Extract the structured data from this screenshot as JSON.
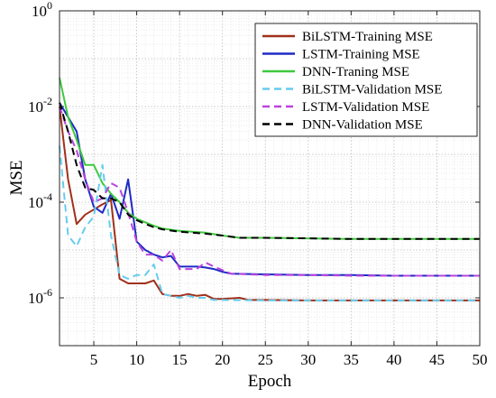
{
  "chart_data": {
    "type": "line",
    "title": "",
    "xlabel": "Epoch",
    "ylabel": "MSE",
    "xlim": [
      1,
      50
    ],
    "ylim": [
      1e-07,
      1
    ],
    "yscale": "log",
    "grid": true,
    "legend_position": "top-right",
    "x_ticks": [
      5,
      10,
      15,
      20,
      25,
      30,
      35,
      40,
      45,
      50
    ],
    "x_tick_labels": [
      "5",
      "10",
      "15",
      "20",
      "25",
      "30",
      "35",
      "40",
      "45",
      "50"
    ],
    "y_ticks": [
      1e-06,
      0.0001,
      0.01,
      1
    ],
    "y_tick_base": "10",
    "y_tick_exponents": [
      "-6",
      "-4",
      "-2",
      "0"
    ],
    "series": [
      {
        "name": "BiLSTM-Training MSE",
        "color": "#a0301a",
        "dash": "solid",
        "points": [
          [
            1,
            0.01
          ],
          [
            2,
            0.0003
          ],
          [
            3,
            3.5e-05
          ],
          [
            4,
            5.5e-05
          ],
          [
            5,
            7e-05
          ],
          [
            6,
            9e-05
          ],
          [
            7,
            0.00011
          ],
          [
            8,
            2.5e-06
          ],
          [
            9,
            2e-06
          ],
          [
            10,
            2e-06
          ],
          [
            11,
            2e-06
          ],
          [
            12,
            2.3e-06
          ],
          [
            13,
            1.2e-06
          ],
          [
            14,
            1.1e-06
          ],
          [
            15,
            1.1e-06
          ],
          [
            16,
            1.2e-06
          ],
          [
            17,
            1.1e-06
          ],
          [
            18,
            1.15e-06
          ],
          [
            19,
            9.5e-07
          ],
          [
            20,
            9.5e-07
          ],
          [
            22,
            1e-06
          ],
          [
            23,
            9e-07
          ],
          [
            25,
            9e-07
          ],
          [
            30,
            8.8e-07
          ],
          [
            35,
            8.8e-07
          ],
          [
            40,
            8.8e-07
          ],
          [
            45,
            8.8e-07
          ],
          [
            50,
            8.8e-07
          ]
        ]
      },
      {
        "name": "LSTM-Training MSE",
        "color": "#1f2bc4",
        "dash": "solid",
        "points": [
          [
            1,
            0.012
          ],
          [
            2,
            0.006
          ],
          [
            3,
            0.003
          ],
          [
            4,
            0.0003
          ],
          [
            5,
            8e-05
          ],
          [
            6,
            6e-05
          ],
          [
            7,
            0.00015
          ],
          [
            8,
            4.5e-05
          ],
          [
            9,
            0.0003
          ],
          [
            10,
            1.5e-05
          ],
          [
            11,
            1e-05
          ],
          [
            12,
            8e-06
          ],
          [
            13,
            7e-06
          ],
          [
            14,
            7.5e-06
          ],
          [
            15,
            4.5e-06
          ],
          [
            16,
            4.5e-06
          ],
          [
            17,
            4.5e-06
          ],
          [
            18,
            4.3e-06
          ],
          [
            19,
            4e-06
          ],
          [
            20,
            3.5e-06
          ],
          [
            21,
            3.2e-06
          ],
          [
            25,
            3.1e-06
          ],
          [
            30,
            3e-06
          ],
          [
            35,
            3e-06
          ],
          [
            40,
            2.9e-06
          ],
          [
            45,
            2.9e-06
          ],
          [
            50,
            2.9e-06
          ]
        ]
      },
      {
        "name": "DNN-Traning MSE",
        "color": "#3ec93e",
        "dash": "solid",
        "points": [
          [
            1,
            0.04
          ],
          [
            2,
            0.006
          ],
          [
            3,
            0.002
          ],
          [
            4,
            0.0006
          ],
          [
            5,
            0.0006
          ],
          [
            6,
            0.00025
          ],
          [
            7,
            0.00015
          ],
          [
            8,
            0.0001
          ],
          [
            9,
            6e-05
          ],
          [
            10,
            4.5e-05
          ],
          [
            11,
            3.8e-05
          ],
          [
            12,
            3.2e-05
          ],
          [
            13,
            2.8e-05
          ],
          [
            15,
            2.5e-05
          ],
          [
            18,
            2.3e-05
          ],
          [
            20,
            2e-05
          ],
          [
            22,
            1.8e-05
          ],
          [
            25,
            1.8e-05
          ],
          [
            30,
            1.75e-05
          ],
          [
            35,
            1.7e-05
          ],
          [
            40,
            1.7e-05
          ],
          [
            45,
            1.7e-05
          ],
          [
            50,
            1.7e-05
          ]
        ]
      },
      {
        "name": "BiLSTM-Validation MSE",
        "color": "#66ccee",
        "dash": "dashed",
        "points": [
          [
            1,
            0.0015
          ],
          [
            2,
            2e-05
          ],
          [
            3,
            1.2e-05
          ],
          [
            4,
            3e-05
          ],
          [
            5,
            5e-05
          ],
          [
            6,
            0.0006
          ],
          [
            7,
            2e-05
          ],
          [
            8,
            3e-06
          ],
          [
            9,
            2.5e-06
          ],
          [
            10,
            3e-06
          ],
          [
            11,
            3e-06
          ],
          [
            12,
            5e-06
          ],
          [
            13,
            1.2e-06
          ],
          [
            14,
            1.1e-06
          ],
          [
            15,
            1e-06
          ],
          [
            16,
            1.1e-06
          ],
          [
            17,
            1e-06
          ],
          [
            18,
            1e-06
          ],
          [
            19,
            9e-07
          ],
          [
            20,
            9e-07
          ],
          [
            25,
            8.8e-07
          ],
          [
            30,
            8.8e-07
          ],
          [
            35,
            8.8e-07
          ],
          [
            40,
            8.8e-07
          ],
          [
            45,
            8.8e-07
          ],
          [
            50,
            8.8e-07
          ]
        ]
      },
      {
        "name": "LSTM-Validation MSE",
        "color": "#bb44dd",
        "dash": "dashed",
        "points": [
          [
            1,
            0.01
          ],
          [
            2,
            0.003
          ],
          [
            3,
            0.0012
          ],
          [
            4,
            0.0003
          ],
          [
            5,
            0.0001
          ],
          [
            6,
            0.00012
          ],
          [
            7,
            0.00025
          ],
          [
            8,
            0.0002
          ],
          [
            9,
            6e-05
          ],
          [
            10,
            1.5e-05
          ],
          [
            11,
            8e-06
          ],
          [
            12,
            8e-06
          ],
          [
            13,
            6e-06
          ],
          [
            14,
            1e-05
          ],
          [
            15,
            4e-06
          ],
          [
            16,
            4e-06
          ],
          [
            17,
            4e-06
          ],
          [
            18,
            5.5e-06
          ],
          [
            19,
            4.5e-06
          ],
          [
            20,
            3.8e-06
          ],
          [
            21,
            3.2e-06
          ],
          [
            25,
            3e-06
          ],
          [
            30,
            3e-06
          ],
          [
            35,
            2.9e-06
          ],
          [
            40,
            2.9e-06
          ],
          [
            45,
            2.9e-06
          ],
          [
            50,
            2.9e-06
          ]
        ]
      },
      {
        "name": "DNN-Validation MSE",
        "color": "#000000",
        "dash": "dashed",
        "points": [
          [
            1,
            0.012
          ],
          [
            2,
            0.003
          ],
          [
            3,
            0.0006
          ],
          [
            4,
            0.0002
          ],
          [
            5,
            0.00018
          ],
          [
            6,
            0.00012
          ],
          [
            7,
            0.00012
          ],
          [
            8,
            0.0001
          ],
          [
            9,
            5.5e-05
          ],
          [
            10,
            4.2e-05
          ],
          [
            11,
            3.5e-05
          ],
          [
            12,
            3e-05
          ],
          [
            13,
            2.7e-05
          ],
          [
            15,
            2.4e-05
          ],
          [
            18,
            2.2e-05
          ],
          [
            20,
            2e-05
          ],
          [
            22,
            1.8e-05
          ],
          [
            25,
            1.8e-05
          ],
          [
            30,
            1.75e-05
          ],
          [
            35,
            1.7e-05
          ],
          [
            40,
            1.7e-05
          ],
          [
            45,
            1.7e-05
          ],
          [
            50,
            1.7e-05
          ]
        ]
      }
    ]
  }
}
